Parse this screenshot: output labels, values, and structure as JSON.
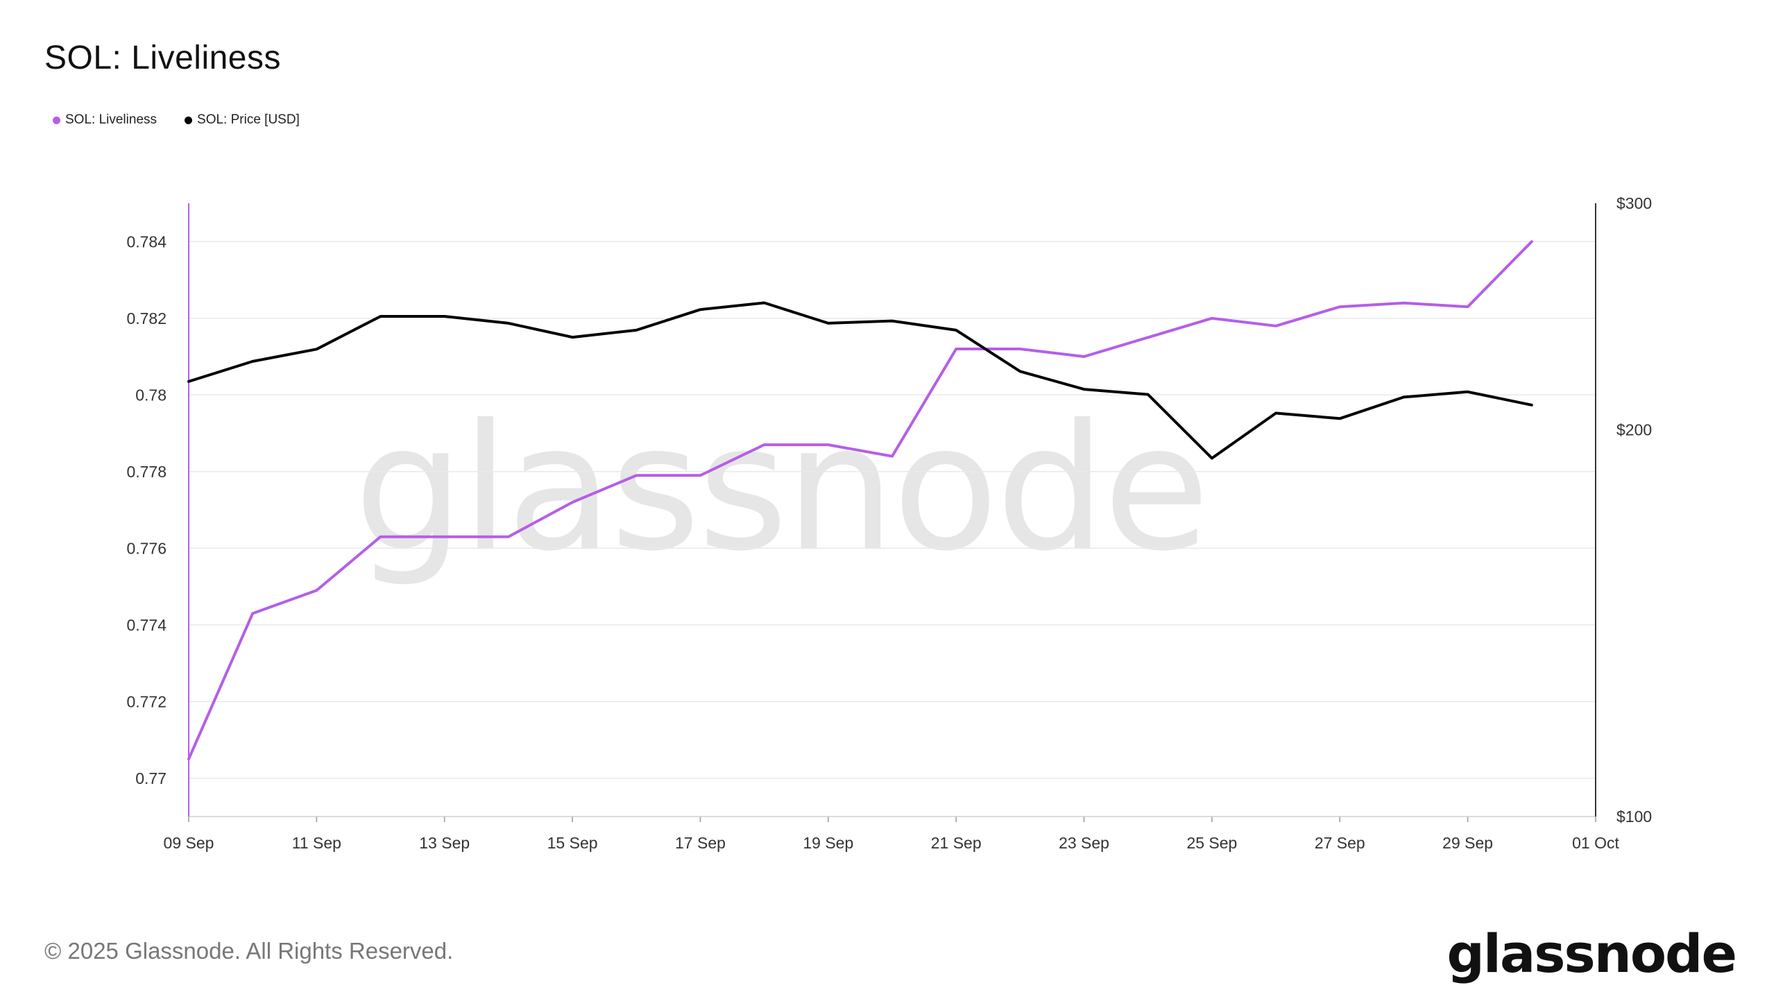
{
  "header": {
    "title": "SOL: Liveliness"
  },
  "legend": [
    {
      "label": "SOL: Liveliness",
      "color": "#b55ee8"
    },
    {
      "label": "SOL: Price [USD]",
      "color": "#000000"
    }
  ],
  "watermark": "glassnode",
  "footer": {
    "copyright": "© 2025 Glassnode. All Rights Reserved.",
    "logo": "glassnode"
  },
  "chart_data": {
    "type": "line",
    "x": [
      "09 Sep",
      "10 Sep",
      "11 Sep",
      "12 Sep",
      "13 Sep",
      "14 Sep",
      "15 Sep",
      "16 Sep",
      "17 Sep",
      "18 Sep",
      "19 Sep",
      "20 Sep",
      "21 Sep",
      "22 Sep",
      "23 Sep",
      "24 Sep",
      "25 Sep",
      "26 Sep",
      "27 Sep",
      "28 Sep",
      "29 Sep",
      "30 Sep"
    ],
    "x_ticks": [
      "09 Sep",
      "11 Sep",
      "13 Sep",
      "15 Sep",
      "17 Sep",
      "19 Sep",
      "21 Sep",
      "23 Sep",
      "25 Sep",
      "27 Sep",
      "29 Sep",
      "01 Oct"
    ],
    "series": [
      {
        "name": "SOL: Liveliness",
        "axis": "left",
        "color": "#b55ee8",
        "values": [
          0.7705,
          0.7743,
          0.7749,
          0.7763,
          0.7763,
          0.7763,
          0.7772,
          0.7779,
          0.7779,
          0.7787,
          0.7787,
          0.7784,
          0.7812,
          0.7812,
          0.781,
          0.7815,
          0.782,
          0.7818,
          0.7823,
          0.7824,
          0.7823,
          0.784
        ]
      },
      {
        "name": "SOL: Price [USD]",
        "axis": "right",
        "color": "#000000",
        "values": [
          218,
          226,
          231,
          245,
          245,
          242,
          236,
          239,
          248,
          251,
          242,
          243,
          239,
          222,
          215,
          213,
          190,
          206,
          204,
          212,
          214,
          209
        ]
      }
    ],
    "y_left": {
      "ticks": [
        "0.77",
        "0.772",
        "0.774",
        "0.776",
        "0.778",
        "0.78",
        "0.782",
        "0.784"
      ],
      "ylim": [
        0.769,
        0.785
      ]
    },
    "y_right": {
      "ticks": [
        "$100",
        "$200",
        "$300"
      ],
      "ylim": [
        100,
        300
      ],
      "scale": "log"
    },
    "grid": true,
    "legend_position": "top-left"
  }
}
